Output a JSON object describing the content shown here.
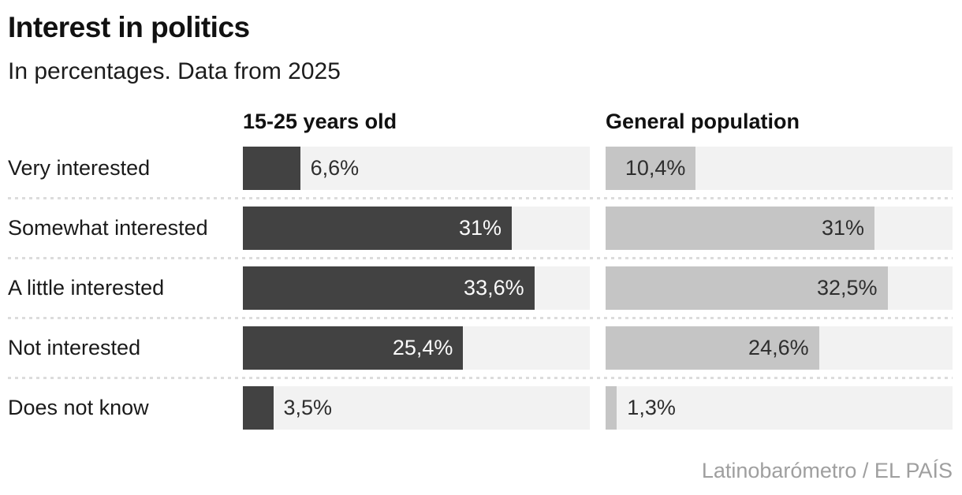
{
  "title": "Interest in politics",
  "subtitle": "In percentages. Data from 2025",
  "source": "Latinobarómetro / EL PAÍS",
  "colors": {
    "youth_bar": "#424242",
    "general_bar": "#c5c5c5",
    "track": "#f2f2f2",
    "separator_dots": "#dcdcdc",
    "value_on_dark": "#fafafa",
    "value_on_light": "#2e2e2e",
    "source_text": "#9f9f9f",
    "heading_text": "#111111"
  },
  "chart_data": {
    "type": "bar",
    "orientation": "horizontal",
    "title": "Interest in politics",
    "subtitle": "In percentages. Data from 2025",
    "categories": [
      "Very interested",
      "Somewhat interested",
      "A little interested",
      "Not interested",
      "Does not know"
    ],
    "series": [
      {
        "name": "15-25 years old",
        "values": [
          6.6,
          31,
          33.6,
          25.4,
          3.5
        ],
        "labels": [
          "6,6%",
          "31%",
          "33,6%",
          "25,4%",
          "3,5%"
        ]
      },
      {
        "name": "General population",
        "values": [
          10.4,
          31,
          32.5,
          24.6,
          1.3
        ],
        "labels": [
          "10,4%",
          "31%",
          "32,5%",
          "24,6%",
          "1,3%"
        ]
      }
    ],
    "xlim": [
      0,
      40
    ],
    "value_suffix": "%",
    "decimal_separator": ",",
    "grid": false,
    "legend_position": "column-headers",
    "source": "Latinobarómetro / EL PAÍS"
  }
}
